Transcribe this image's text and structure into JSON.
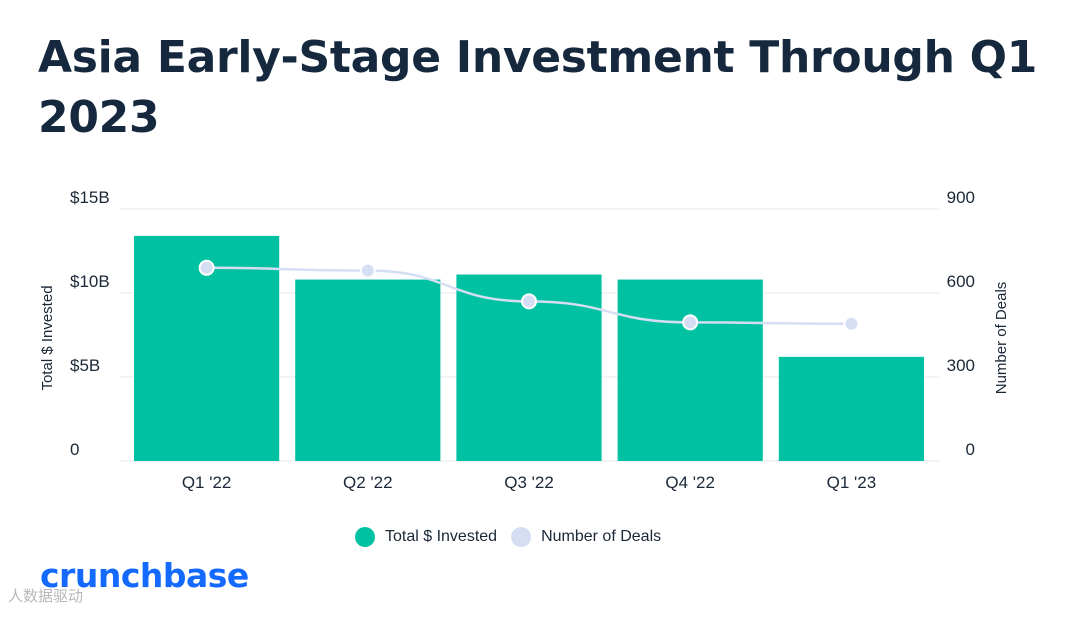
{
  "title": "Asia Early-Stage Investment Through Q1 2023",
  "brand": "crunchbase",
  "watermark": "人数据驱动",
  "colors": {
    "bar": "#00c2a2",
    "line": "#d5def2",
    "title": "#16283d",
    "brand": "#146aff",
    "grid": "#e6e9ee"
  },
  "legend": {
    "invested_label": "Total $ Invested",
    "deals_label": "Number of Deals"
  },
  "chart_data": {
    "type": "bar",
    "categories": [
      "Q1 '22",
      "Q2 '22",
      "Q3 '22",
      "Q4 '22",
      "Q1 '23"
    ],
    "series": [
      {
        "name": "Total $ Invested",
        "type": "bar",
        "axis": "left",
        "unit": "B USD",
        "values": [
          13.4,
          10.8,
          11.1,
          10.8,
          6.2
        ]
      },
      {
        "name": "Number of Deals",
        "type": "line",
        "axis": "right",
        "values": [
          690,
          680,
          570,
          495,
          490
        ]
      }
    ],
    "ylabel": "Total $ Invested",
    "y2label": "Number of Deals",
    "ylim": [
      0,
      15
    ],
    "y2lim": [
      0,
      900
    ],
    "yticks": [
      {
        "value": 0,
        "label": "0"
      },
      {
        "value": 5,
        "label": "$5B"
      },
      {
        "value": 10,
        "label": "$10B"
      },
      {
        "value": 15,
        "label": "$15B"
      }
    ],
    "y2ticks": [
      {
        "value": 0,
        "label": "0"
      },
      {
        "value": 300,
        "label": "300"
      },
      {
        "value": 600,
        "label": "600"
      },
      {
        "value": 900,
        "label": "900"
      }
    ],
    "legend_position": "bottom",
    "grid": true
  }
}
